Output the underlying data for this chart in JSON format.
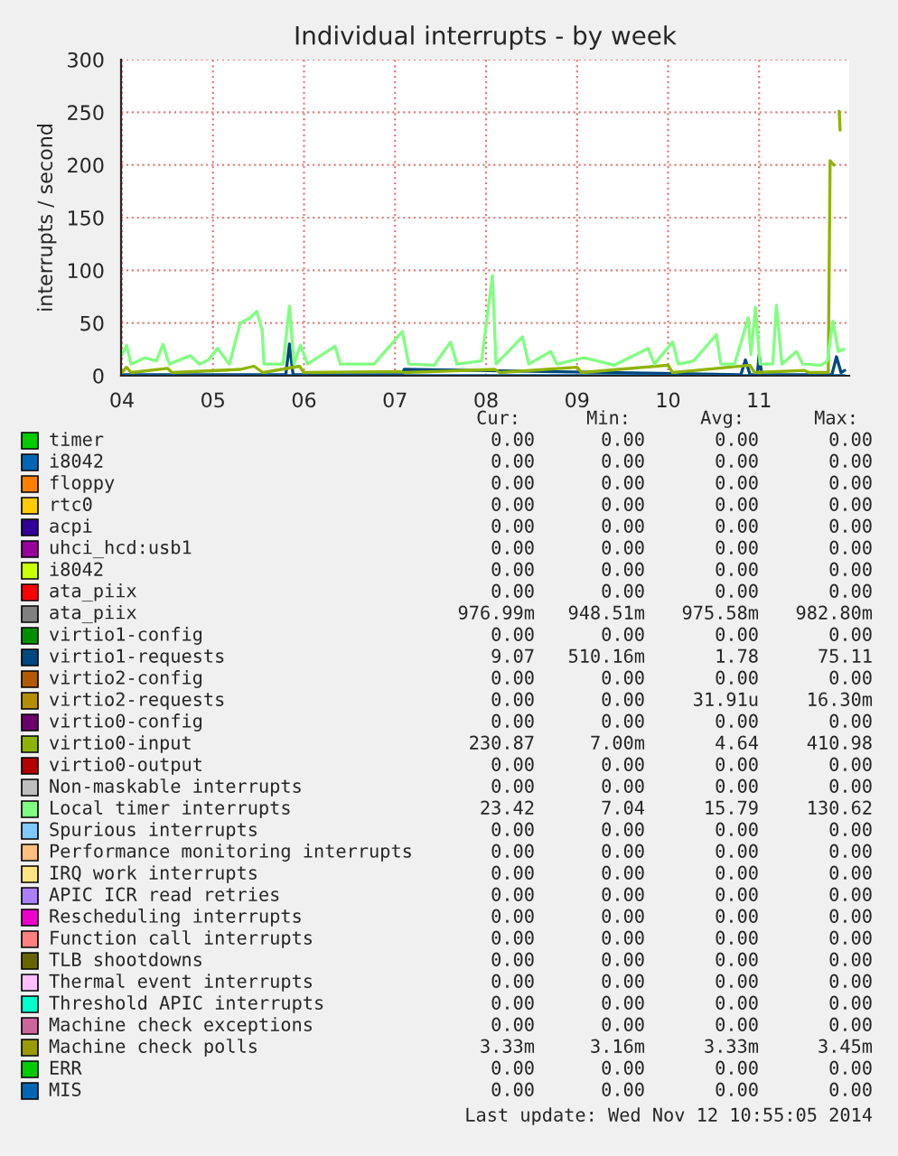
{
  "chart_data": {
    "type": "line",
    "title": "Individual interrupts - by week",
    "ylabel": "interrupts / second",
    "xlim": [
      3.99,
      11.99
    ],
    "ylim": [
      0,
      300
    ],
    "xticks": [
      {
        "value": 4,
        "label": "04"
      },
      {
        "value": 5,
        "label": "05"
      },
      {
        "value": 6,
        "label": "06"
      },
      {
        "value": 7,
        "label": "07"
      },
      {
        "value": 8,
        "label": "08"
      },
      {
        "value": 9,
        "label": "09"
      },
      {
        "value": 10,
        "label": "10"
      },
      {
        "value": 11,
        "label": "11"
      }
    ],
    "yticks": [
      0,
      50,
      100,
      150,
      200,
      250,
      300
    ],
    "grid": true,
    "legend": "bottom",
    "series": [
      {
        "name": "timer",
        "color": "#00cc00"
      },
      {
        "name": "i8042",
        "color": "#0066b3"
      },
      {
        "name": "floppy",
        "color": "#ff8000"
      },
      {
        "name": "rtc0",
        "color": "#ffcc00"
      },
      {
        "name": "acpi",
        "color": "#330099"
      },
      {
        "name": "uhci_hcd:usb1",
        "color": "#990099"
      },
      {
        "name": "i8042",
        "color": "#ccff00"
      },
      {
        "name": "ata_piix",
        "color": "#ff0000"
      },
      {
        "name": "ata_piix",
        "color": "#808080"
      },
      {
        "name": "virtio1-config",
        "color": "#008f00"
      },
      {
        "name": "virtio1-requests",
        "color": "#00487d",
        "x": [
          4.0,
          5.8,
          5.84,
          5.88,
          7.08,
          7.1,
          10.8,
          10.85,
          10.9,
          10.98,
          11.0,
          11.03,
          11.8,
          11.85,
          11.9,
          11.94
        ],
        "values": [
          1,
          1,
          30,
          1,
          1,
          6,
          1,
          15,
          1,
          1,
          20,
          1,
          1,
          18,
          3,
          5
        ]
      },
      {
        "name": "virtio2-config",
        "color": "#b35a00"
      },
      {
        "name": "virtio2-requests",
        "color": "#b38f00"
      },
      {
        "name": "virtio0-config",
        "color": "#6b006b"
      },
      {
        "name": "virtio0-input",
        "color": "#8fb300",
        "x": [
          4.0,
          4.05,
          4.1,
          4.5,
          4.55,
          5.3,
          5.45,
          5.55,
          5.95,
          6.0,
          7.05,
          7.1,
          8.1,
          8.15,
          9.0,
          9.05,
          10.0,
          10.05,
          10.9,
          10.95,
          11.5,
          11.55,
          11.76,
          11.78,
          11.82,
          11.84,
          11.88,
          11.89
        ],
        "values": [
          3,
          8,
          3,
          7,
          3,
          6,
          9,
          3,
          9,
          3,
          4,
          3,
          6,
          3,
          8,
          3,
          10,
          3,
          10,
          3,
          5,
          3,
          3,
          204,
          200,
          null,
          251,
          233
        ]
      },
      {
        "name": "virtio0-output",
        "color": "#b30000"
      },
      {
        "name": "Non-maskable interrupts",
        "color": "#bebebe"
      },
      {
        "name": "Local timer interrupts",
        "color": "#80ff80",
        "x": [
          4.0,
          4.05,
          4.1,
          4.25,
          4.38,
          4.45,
          4.52,
          4.75,
          4.85,
          4.95,
          5.05,
          5.18,
          5.3,
          5.41,
          5.48,
          5.54,
          5.56,
          5.77,
          5.84,
          5.89,
          5.96,
          6.04,
          6.34,
          6.4,
          6.77,
          7.08,
          7.15,
          7.43,
          7.61,
          7.68,
          7.95,
          8.07,
          8.11,
          8.4,
          8.47,
          8.71,
          8.78,
          9.08,
          9.41,
          9.78,
          9.85,
          10.05,
          10.11,
          10.28,
          10.53,
          10.58,
          10.73,
          10.81,
          10.88,
          10.91,
          10.96,
          11.01,
          11.15,
          11.19,
          11.25,
          11.41,
          11.48,
          11.68,
          11.75,
          11.81,
          11.87,
          11.93
        ],
        "values": [
          20,
          29,
          11,
          17,
          14,
          30,
          11,
          19,
          11,
          15,
          26,
          11,
          50,
          55,
          61,
          43,
          11,
          11,
          66,
          11,
          29,
          11,
          28,
          11,
          11,
          42,
          11,
          10,
          32,
          11,
          14,
          95,
          11,
          37,
          11,
          23,
          11,
          17,
          10,
          26,
          11,
          32,
          11,
          14,
          39,
          11,
          11,
          34,
          55,
          20,
          65,
          11,
          11,
          67,
          11,
          23,
          11,
          10,
          14,
          52,
          23,
          25
        ]
      },
      {
        "name": "Spurious interrupts",
        "color": "#80c9ff"
      },
      {
        "name": "Performance monitoring interrupts",
        "color": "#ffc080"
      },
      {
        "name": "IRQ work interrupts",
        "color": "#ffe680"
      },
      {
        "name": "APIC ICR read retries",
        "color": "#aa80ff"
      },
      {
        "name": "Rescheduling interrupts",
        "color": "#ee00cc"
      },
      {
        "name": "Function call interrupts",
        "color": "#ff8080"
      },
      {
        "name": "TLB shootdowns",
        "color": "#666600"
      },
      {
        "name": "Thermal event interrupts",
        "color": "#ffbfff"
      },
      {
        "name": "Threshold APIC interrupts",
        "color": "#00ffcc"
      },
      {
        "name": "Machine check exceptions",
        "color": "#cc6699"
      },
      {
        "name": "Machine check polls",
        "color": "#999900"
      },
      {
        "name": "ERR",
        "color": "#00cc00"
      },
      {
        "name": "MIS",
        "color": "#0066b3",
        "x": [
          4.0,
          11.94
        ],
        "values": [
          0,
          0
        ]
      }
    ],
    "annotations": [
      "Cur:",
      "Min:",
      "Avg:",
      "Max:",
      "0.00",
      "0.00",
      "0.00",
      "0.00",
      "0.00",
      "0.00",
      "0.00",
      "0.00",
      "0.00",
      "0.00",
      "0.00",
      "0.00",
      "0.00",
      "0.00",
      "0.00",
      "0.00",
      "0.00",
      "0.00",
      "0.00",
      "0.00",
      "0.00",
      "0.00",
      "0.00",
      "0.00",
      "0.00",
      "0.00",
      "0.00",
      "0.00",
      "0.00",
      "0.00",
      "0.00",
      "0.00",
      "976.99m",
      "948.51m",
      "975.58m",
      "982.80m",
      "0.00",
      "0.00",
      "0.00",
      "0.00",
      "9.07",
      "510.16m",
      "1.78",
      "75.11",
      "0.00",
      "0.00",
      "0.00",
      "0.00",
      "0.00",
      "0.00",
      "31.91u",
      "16.30m",
      "0.00",
      "0.00",
      "0.00",
      "0.00",
      "230.87",
      "7.00m",
      "4.64",
      "410.98",
      "0.00",
      "0.00",
      "0.00",
      "0.00",
      "0.00",
      "0.00",
      "0.00",
      "0.00",
      "23.42",
      "7.04",
      "15.79",
      "130.62",
      "0.00",
      "0.00",
      "0.00",
      "0.00",
      "0.00",
      "0.00",
      "0.00",
      "0.00",
      "0.00",
      "0.00",
      "0.00",
      "0.00",
      "0.00",
      "0.00",
      "0.00",
      "0.00",
      "0.00",
      "0.00",
      "0.00",
      "0.00",
      "0.00",
      "0.00",
      "0.00",
      "0.00",
      "0.00",
      "0.00",
      "0.00",
      "0.00",
      "0.00",
      "0.00",
      "0.00",
      "0.00",
      "0.00",
      "0.00",
      "0.00",
      "0.00",
      "0.00",
      "0.00",
      "0.00",
      "0.00",
      "3.33m",
      "3.16m",
      "3.33m",
      "3.45m",
      "0.00",
      "0.00",
      "0.00",
      "0.00",
      "0.00",
      "0.00",
      "0.00",
      "0.00",
      "Last update: Wed Nov 12 10:55:05 2014"
    ]
  }
}
